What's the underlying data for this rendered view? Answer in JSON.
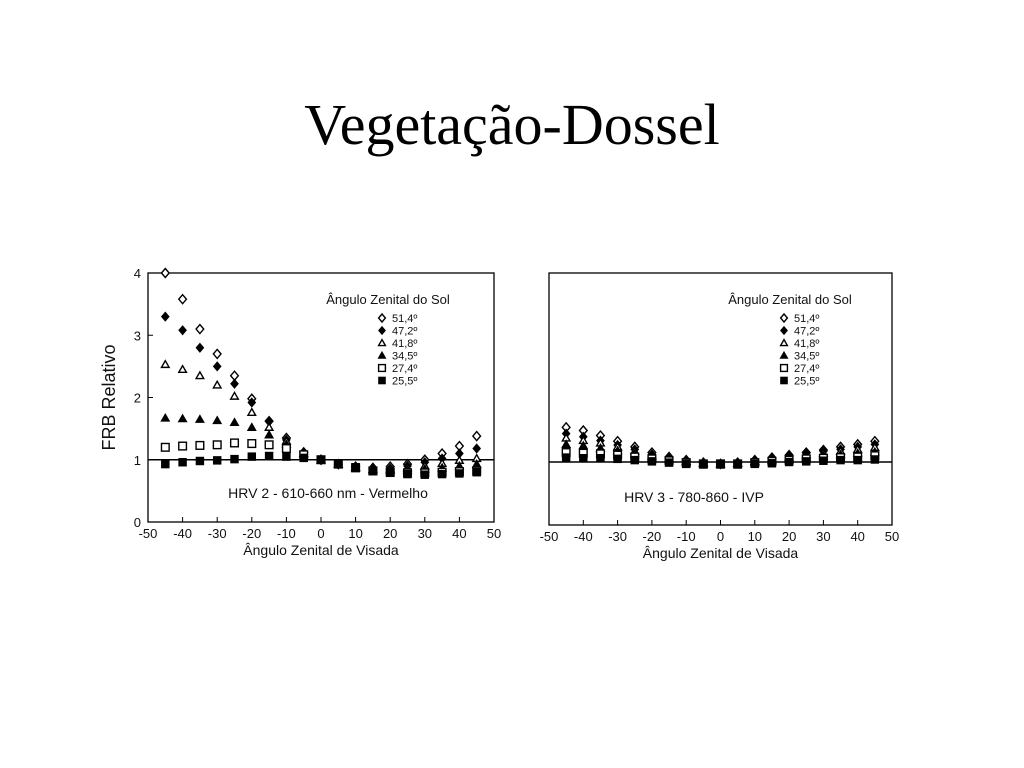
{
  "slide": {
    "title": "Vegetação-Dossel"
  },
  "chart_data": [
    {
      "type": "scatter",
      "title": "",
      "xlabel": "Ângulo Zenital de Visada",
      "ylabel": "FRB   Relativo",
      "xlim": [
        -50,
        50
      ],
      "ylim": [
        0,
        4
      ],
      "xticks": [
        -50,
        -40,
        -30,
        -20,
        -10,
        0,
        10,
        20,
        30,
        40,
        50
      ],
      "yticks": [
        0,
        1,
        2,
        3,
        4
      ],
      "reference_line": 1,
      "annotation": "HRV 2 - 610-660 nm - Vermelho",
      "legend_title": "Ângulo Zenital do Sol",
      "legend_position": "top-right",
      "grid": false,
      "x": [
        -45,
        -40,
        -35,
        -30,
        -25,
        -20,
        -15,
        -10,
        -5,
        0,
        5,
        10,
        15,
        20,
        25,
        30,
        35,
        40,
        45
      ],
      "series": [
        {
          "name": "51,4º",
          "marker": "open-diamond",
          "values": [
            4.0,
            3.58,
            3.1,
            2.7,
            2.35,
            1.98,
            1.62,
            1.35,
            1.12,
            1.0,
            0.93,
            0.89,
            0.87,
            0.89,
            0.93,
            1.0,
            1.1,
            1.22,
            1.38
          ]
        },
        {
          "name": "47,2º",
          "marker": "filled-diamond",
          "values": [
            3.3,
            3.08,
            2.8,
            2.5,
            2.22,
            1.92,
            1.62,
            1.32,
            1.1,
            1.0,
            0.93,
            0.88,
            0.85,
            0.86,
            0.9,
            0.96,
            1.02,
            1.1,
            1.18
          ]
        },
        {
          "name": "41,8º",
          "marker": "open-triangle",
          "values": [
            2.53,
            2.45,
            2.35,
            2.2,
            2.02,
            1.76,
            1.52,
            1.3,
            1.1,
            1.0,
            0.93,
            0.88,
            0.85,
            0.85,
            0.87,
            0.9,
            0.94,
            0.99,
            1.02
          ]
        },
        {
          "name": "34,5º",
          "marker": "filled-triangle",
          "values": [
            1.67,
            1.66,
            1.65,
            1.63,
            1.6,
            1.52,
            1.4,
            1.25,
            1.1,
            1.0,
            0.93,
            0.87,
            0.84,
            0.83,
            0.83,
            0.85,
            0.87,
            0.9,
            0.93
          ]
        },
        {
          "name": "27,4º",
          "marker": "open-square",
          "values": [
            1.2,
            1.22,
            1.23,
            1.24,
            1.27,
            1.26,
            1.24,
            1.18,
            1.08,
            1.0,
            0.93,
            0.87,
            0.82,
            0.8,
            0.79,
            0.79,
            0.8,
            0.81,
            0.82
          ]
        },
        {
          "name": "25,5º",
          "marker": "filled-square",
          "values": [
            0.93,
            0.96,
            0.98,
            0.99,
            1.01,
            1.05,
            1.06,
            1.05,
            1.03,
            1.0,
            0.94,
            0.88,
            0.82,
            0.79,
            0.77,
            0.76,
            0.77,
            0.78,
            0.8
          ]
        }
      ]
    },
    {
      "type": "scatter",
      "title": "",
      "xlabel": "Ângulo Zenital de Visada",
      "ylabel": "",
      "xlim": [
        -50,
        50
      ],
      "ylim": [
        0,
        4
      ],
      "xticks": [
        -50,
        -40,
        -30,
        -20,
        -10,
        0,
        10,
        20,
        30,
        40,
        50
      ],
      "yticks": [],
      "reference_line": 1,
      "annotation": "HRV 3 - 780-860 - IVP",
      "legend_title": "Ângulo Zenital do Sol",
      "legend_position": "top-right",
      "grid": false,
      "x": [
        -45,
        -40,
        -35,
        -30,
        -25,
        -20,
        -15,
        -10,
        -5,
        0,
        5,
        10,
        15,
        20,
        25,
        30,
        35,
        40,
        45
      ],
      "series": [
        {
          "name": "51,4º",
          "marker": "open-diamond",
          "values": [
            1.55,
            1.5,
            1.42,
            1.33,
            1.24,
            1.15,
            1.08,
            1.03,
            0.99,
            0.97,
            0.99,
            1.03,
            1.07,
            1.11,
            1.15,
            1.19,
            1.24,
            1.28,
            1.33
          ]
        },
        {
          "name": "47,2º",
          "marker": "filled-diamond",
          "values": [
            1.45,
            1.4,
            1.34,
            1.27,
            1.2,
            1.12,
            1.06,
            1.02,
            0.98,
            0.97,
            0.98,
            1.02,
            1.06,
            1.1,
            1.14,
            1.17,
            1.2,
            1.24,
            1.28
          ]
        },
        {
          "name": "41,8º",
          "marker": "open-triangle",
          "values": [
            1.38,
            1.34,
            1.3,
            1.24,
            1.17,
            1.1,
            1.05,
            1.01,
            0.98,
            0.97,
            0.98,
            1.01,
            1.05,
            1.08,
            1.11,
            1.14,
            1.17,
            1.2,
            1.23
          ]
        },
        {
          "name": "34,5º",
          "marker": "filled-triangle",
          "values": [
            1.28,
            1.26,
            1.22,
            1.18,
            1.13,
            1.08,
            1.04,
            1.0,
            0.98,
            0.97,
            0.98,
            1.0,
            1.03,
            1.06,
            1.08,
            1.1,
            1.12,
            1.14,
            1.16
          ]
        },
        {
          "name": "27,4º",
          "marker": "open-square",
          "values": [
            1.15,
            1.14,
            1.13,
            1.11,
            1.08,
            1.05,
            1.02,
            0.99,
            0.97,
            0.97,
            0.97,
            0.99,
            1.01,
            1.03,
            1.05,
            1.06,
            1.07,
            1.08,
            1.1
          ]
        },
        {
          "name": "25,5º",
          "marker": "filled-square",
          "values": [
            1.07,
            1.06,
            1.06,
            1.05,
            1.03,
            1.01,
            0.99,
            0.97,
            0.96,
            0.96,
            0.96,
            0.97,
            0.98,
            1.0,
            1.01,
            1.02,
            1.03,
            1.03,
            1.04
          ]
        }
      ]
    }
  ]
}
